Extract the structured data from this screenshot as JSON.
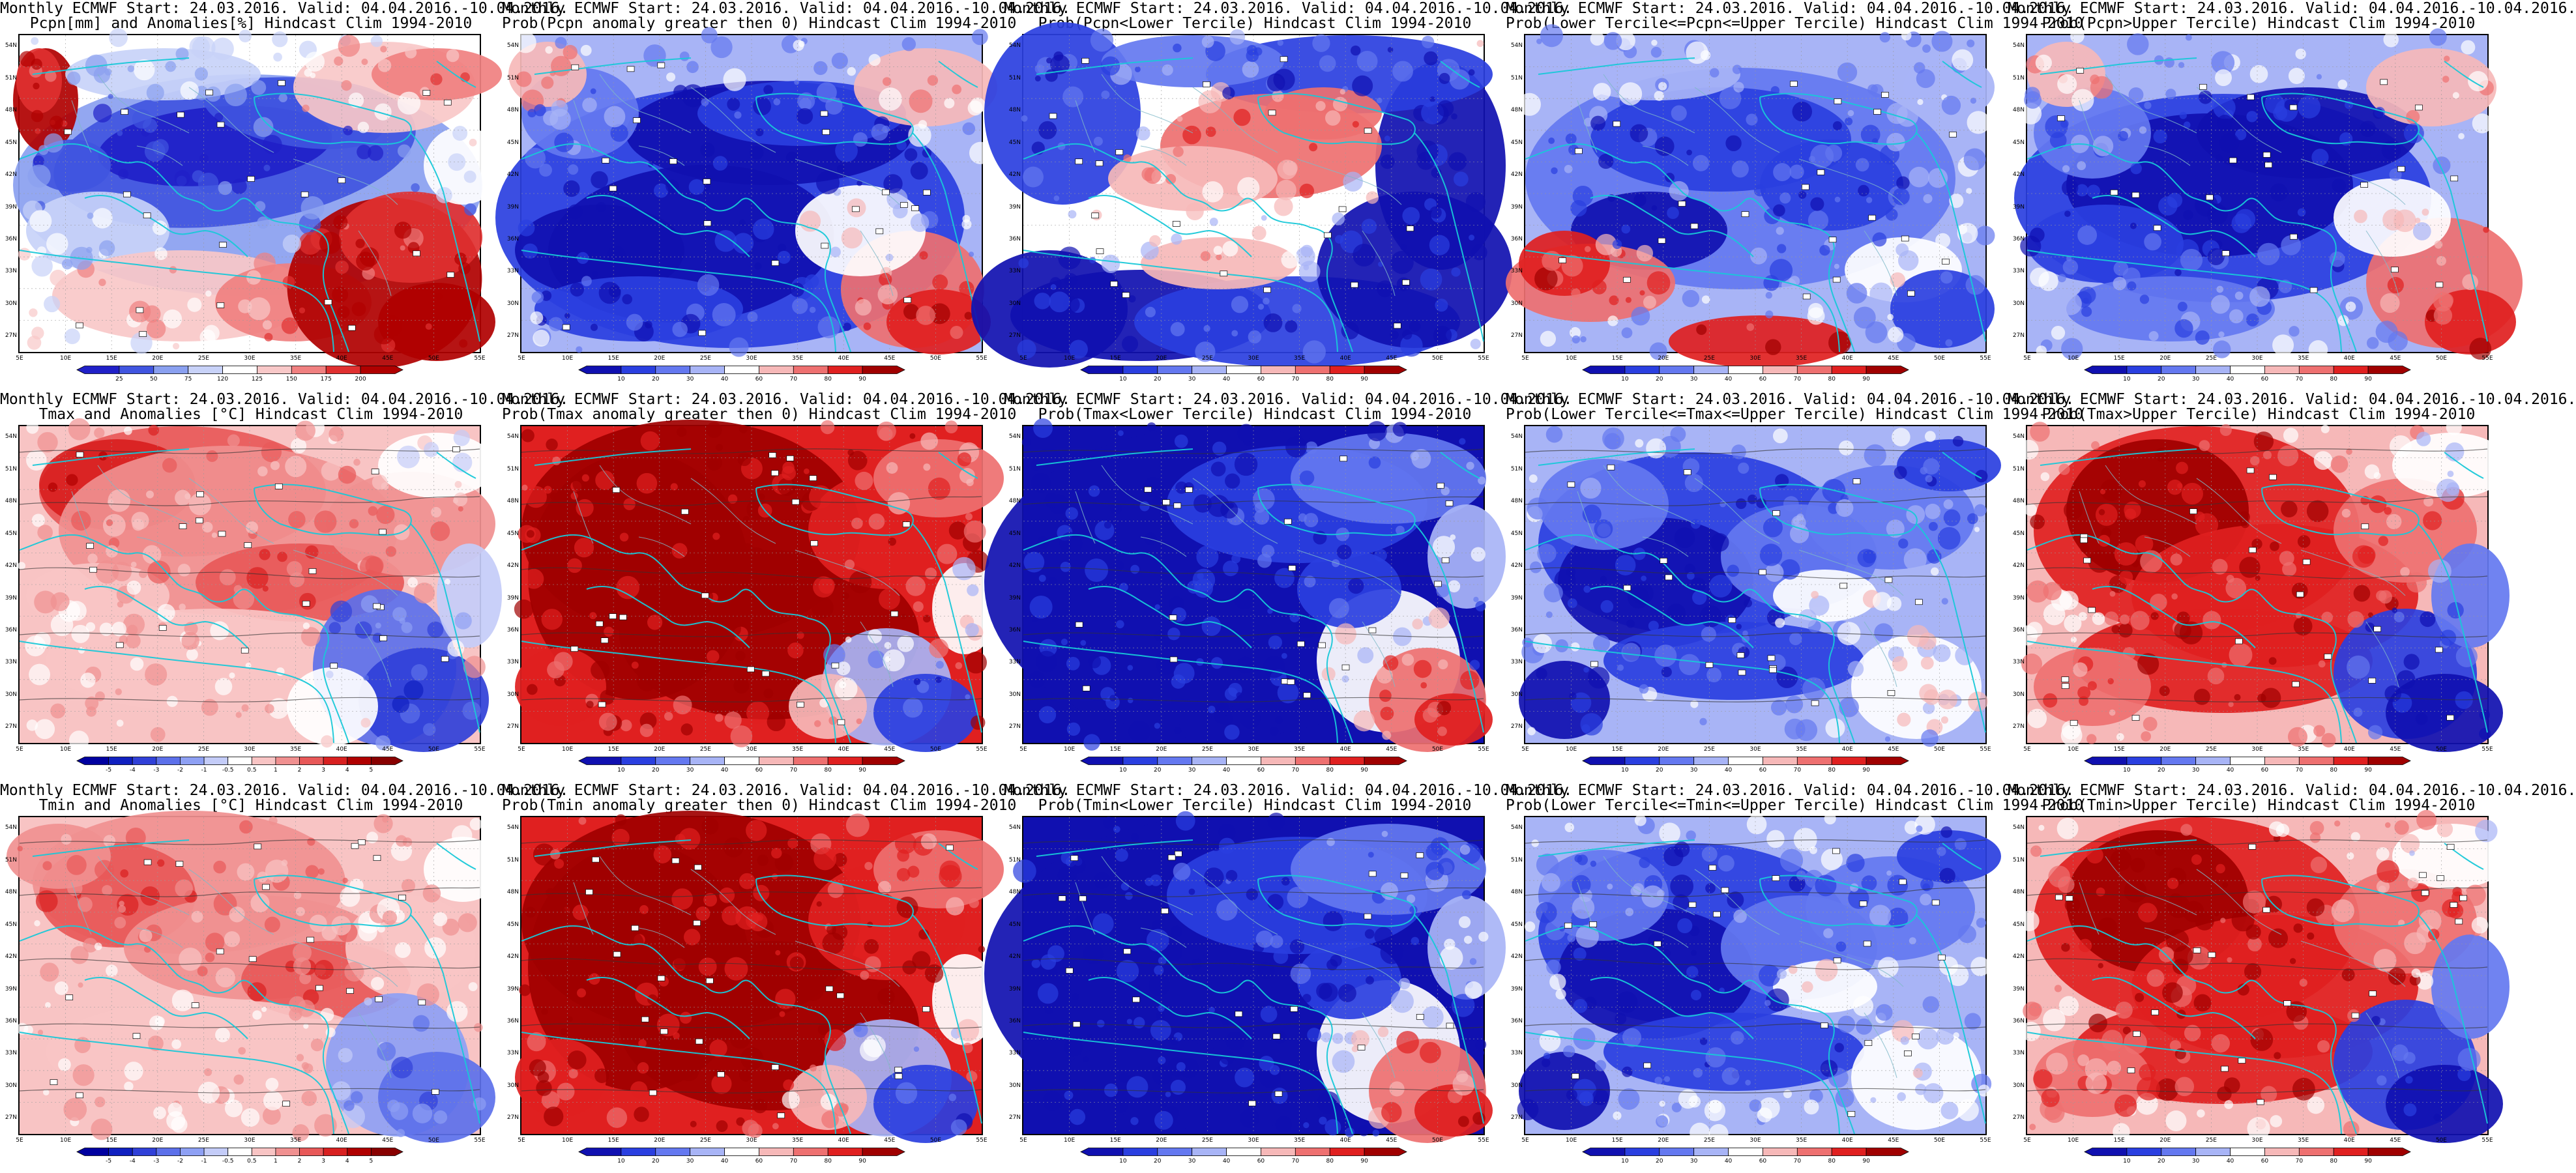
{
  "axes": {
    "lat_labels": [
      "54N",
      "51N",
      "48N",
      "45N",
      "42N",
      "39N",
      "36N",
      "33N",
      "30N",
      "27N"
    ],
    "lon_labels": [
      "5E",
      "10E",
      "15E",
      "20E",
      "25E",
      "30E",
      "35E",
      "40E",
      "45E",
      "50E",
      "55E"
    ],
    "lat_range": [
      25.5,
      55.0
    ],
    "lon_range": [
      5,
      55
    ]
  },
  "colorbars": {
    "pcpn_anom": {
      "labels": [
        "25",
        "50",
        "75",
        "120",
        "125",
        "150",
        "175",
        "200"
      ],
      "colors": [
        "#2020c8",
        "#4055e0",
        "#8aa0f0",
        "#c8d2f8",
        "#ffffff",
        "#f8c8c8",
        "#f08080",
        "#e03030",
        "#b00000"
      ]
    },
    "prob": {
      "labels": [
        "10",
        "20",
        "30",
        "40",
        "60",
        "70",
        "80",
        "90"
      ],
      "colors": [
        "#1010b0",
        "#2a3fe0",
        "#6478f0",
        "#a8b4f6",
        "#ffffff",
        "#f6b8b8",
        "#ee7070",
        "#e02020",
        "#a00000"
      ]
    },
    "temp_anom": {
      "labels": [
        "-5",
        "-4",
        "-3",
        "-2",
        "-1",
        "-0.5",
        "0.5",
        "1",
        "2",
        "3",
        "4",
        "5"
      ],
      "colors": [
        "#0000a0",
        "#1020c0",
        "#3040d8",
        "#5c70ea",
        "#8ea0f4",
        "#c4ccf8",
        "#ffffff",
        "#f8c4c4",
        "#f09090",
        "#e85858",
        "#d82020",
        "#b00000",
        "#880000"
      ]
    }
  },
  "panels": [
    {
      "title1": "Monthly ECMWF Start: 24.03.2016. Valid: 04.04.2016.-10.04.2016.",
      "title2": "Pcpn[mm] and Anomalies[%] Hindcast Clim 1994-2010",
      "colorbar": "pcpn_anom",
      "pattern": "pcpn_anom"
    },
    {
      "title1": "Monthly ECMWF Start: 24.03.2016. Valid: 04.04.2016.-10.04.2016.",
      "title2": "Prob(Pcpn anomaly greater then 0) Hindcast Clim 1994-2010",
      "colorbar": "prob",
      "pattern": "pcpn_gt0"
    },
    {
      "title1": "Monthly ECMWF Start: 24.03.2016. Valid: 04.04.2016.-10.04.2016.",
      "title2": "Prob(Pcpn<Lower Tercile) Hindcast Clim 1994-2010",
      "colorbar": "prob",
      "pattern": "pcpn_lower"
    },
    {
      "title1": "Monthly ECMWF Start: 24.03.2016. Valid: 04.04.2016.-10.04.2016.",
      "title2": "Prob(Lower Tercile<=Pcpn<=Upper Tercile) Hindcast Clim 1994-2010",
      "colorbar": "prob",
      "pattern": "pcpn_middle"
    },
    {
      "title1": "Monthly ECMWF Start: 24.03.2016. Valid: 04.04.2016.-10.04.2016.",
      "title2": "Prob(Pcpn>Upper Tercile) Hindcast Clim 1994-2010",
      "colorbar": "prob",
      "pattern": "pcpn_upper"
    },
    {
      "title1": "Monthly ECMWF Start: 24.03.2016. Valid: 04.04.2016.-10.04.2016.",
      "title2": "Tmax and Anomalies [°C] Hindcast Clim 1994-2010",
      "colorbar": "temp_anom",
      "pattern": "warm_anom"
    },
    {
      "title1": "Monthly ECMWF Start: 24.03.2016. Valid: 04.04.2016.-10.04.2016.",
      "title2": "Prob(Tmax anomaly greater then 0) Hindcast Clim 1994-2010",
      "colorbar": "prob",
      "pattern": "warm_gt0"
    },
    {
      "title1": "Monthly ECMWF Start: 24.03.2016. Valid: 04.04.2016.-10.04.2016.",
      "title2": "Prob(Tmax<Lower Tercile) Hindcast Clim 1994-2010",
      "colorbar": "prob",
      "pattern": "temp_lower"
    },
    {
      "title1": "Monthly ECMWF Start: 24.03.2016. Valid: 04.04.2016.-10.04.2016.",
      "title2": "Prob(Lower Tercile<=Tmax<=Upper Tercile) Hindcast Clim 1994-2010",
      "colorbar": "prob",
      "pattern": "temp_middle"
    },
    {
      "title1": "Monthly ECMWF Start: 24.03.2016. Valid: 04.04.2016.-10.04.2016.",
      "title2": "Prob(Tmax>Upper Tercile) Hindcast Clim 1994-2010",
      "colorbar": "prob",
      "pattern": "temp_upper"
    },
    {
      "title1": "Monthly ECMWF Start: 24.03.2016. Valid: 04.04.2016.-10.04.2016.",
      "title2": "Tmin and Anomalies [°C] Hindcast Clim 1994-2010",
      "colorbar": "temp_anom",
      "pattern": "warm_anom_mild"
    },
    {
      "title1": "Monthly ECMWF Start: 24.03.2016. Valid: 04.04.2016.-10.04.2016.",
      "title2": "Prob(Tmin anomaly greater then 0) Hindcast Clim 1994-2010",
      "colorbar": "prob",
      "pattern": "warm_gt0"
    },
    {
      "title1": "Monthly ECMWF Start: 24.03.2016. Valid: 04.04.2016.-10.04.2016.",
      "title2": "Prob(Tmin<Lower Tercile) Hindcast Clim 1994-2010",
      "colorbar": "prob",
      "pattern": "temp_lower"
    },
    {
      "title1": "Monthly ECMWF Start: 24.03.2016. Valid: 04.04.2016.-10.04.2016.",
      "title2": "Prob(Lower Tercile<=Tmin<=Upper Tercile) Hindcast Clim 1994-2010",
      "colorbar": "prob",
      "pattern": "temp_middle"
    },
    {
      "title1": "Monthly ECMWF Start: 24.03.2016. Valid: 04.04.2016.-10.04.2016.",
      "title2": "Prob(Tmin>Upper Tercile) Hindcast Clim 1994-2010",
      "colorbar": "prob",
      "pattern": "temp_upper"
    }
  ]
}
